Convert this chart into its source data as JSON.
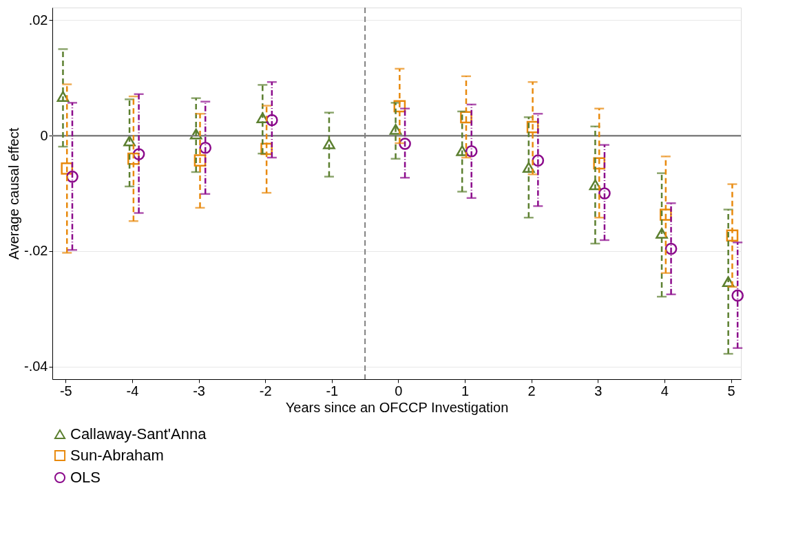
{
  "chart_data": {
    "type": "scatter",
    "xlabel": "Years since an OFCCP Investigation",
    "ylabel": "Average causal effect",
    "xlim": [
      -5.2,
      5.15
    ],
    "xticks": [
      -5,
      -4,
      -3,
      -2,
      -1,
      0,
      1,
      2,
      3,
      4,
      5
    ],
    "ylim": [
      -0.0422,
      0.0222
    ],
    "yticks": [
      {
        "value": 0.02,
        "label": ".02"
      },
      0,
      {
        "value": -0.02,
        "label": "-.02"
      },
      {
        "value": -0.04,
        "label": "-.04"
      }
    ],
    "grid": "y",
    "legend": "bottom",
    "ref_lines": [
      {
        "axis": "y",
        "value": 0,
        "color": "#808080",
        "line_style": "solid"
      },
      {
        "axis": "x",
        "value": -0.5,
        "color": "#808080",
        "line_style": "dashed"
      }
    ],
    "series": [
      {
        "name": "Callaway-Sant'Anna",
        "color": "#5b7f2f",
        "marker": "triangle",
        "line_style": "dashed",
        "x": [
          -5.04,
          -4.04,
          -3.04,
          -2.04,
          -1.04,
          -0.04,
          0.96,
          1.96,
          2.96,
          3.96,
          4.96
        ],
        "values": [
          0.0068,
          -0.0009,
          0.0003,
          0.0031,
          -0.0014,
          0.0011,
          -0.0026,
          -0.0055,
          -0.0085,
          -0.0169,
          -0.0253
        ],
        "errors": [
          [
            -0.0019,
            0.015
          ],
          [
            -0.0088,
            0.0063
          ],
          [
            -0.0063,
            0.0065
          ],
          [
            -0.0031,
            0.0088
          ],
          [
            -0.0071,
            0.004
          ],
          [
            -0.004,
            0.0057
          ],
          [
            -0.0097,
            0.0042
          ],
          [
            -0.0142,
            0.0032
          ],
          [
            -0.0187,
            0.0016
          ],
          [
            -0.0279,
            -0.0065
          ],
          [
            -0.0378,
            -0.0128
          ]
        ]
      },
      {
        "name": "Sun-Abraham",
        "color": "#e8890c",
        "marker": "square",
        "line_style": "dashed",
        "x": [
          -4.98,
          -3.98,
          -2.98,
          -1.98,
          0.02,
          1.02,
          2.02,
          3.02,
          4.02,
          5.02
        ],
        "values": [
          -0.0057,
          -0.004,
          -0.0043,
          -0.0023,
          0.0051,
          0.0032,
          0.0015,
          -0.0048,
          -0.0137,
          -0.0173
        ],
        "errors": [
          [
            -0.0203,
            0.0089
          ],
          [
            -0.0148,
            0.0068
          ],
          [
            -0.0125,
            0.0038
          ],
          [
            -0.0099,
            0.0052
          ],
          [
            -0.0013,
            0.0116
          ],
          [
            -0.0038,
            0.0103
          ],
          [
            -0.0067,
            0.0093
          ],
          [
            -0.0142,
            0.0047
          ],
          [
            -0.0238,
            -0.0036
          ],
          [
            -0.0262,
            -0.0084
          ]
        ]
      },
      {
        "name": "OLS",
        "color": "#8b0a8b",
        "marker": "circle",
        "line_style": "dotted",
        "x": [
          -4.9,
          -3.9,
          -2.9,
          -1.9,
          0.1,
          1.1,
          2.1,
          3.1,
          4.1,
          5.1
        ],
        "values": [
          -0.0071,
          -0.0032,
          -0.0021,
          0.0027,
          -0.0014,
          -0.0027,
          -0.0043,
          -0.01,
          -0.0196,
          -0.0277
        ],
        "errors": [
          [
            -0.0198,
            0.0057
          ],
          [
            -0.0134,
            0.0072
          ],
          [
            -0.0101,
            0.0059
          ],
          [
            -0.0038,
            0.0093
          ],
          [
            -0.0073,
            0.0047
          ],
          [
            -0.0108,
            0.0054
          ],
          [
            -0.0122,
            0.0038
          ],
          [
            -0.0181,
            -0.0016
          ],
          [
            -0.0275,
            -0.0117
          ],
          [
            -0.0368,
            -0.0185
          ]
        ]
      }
    ]
  }
}
